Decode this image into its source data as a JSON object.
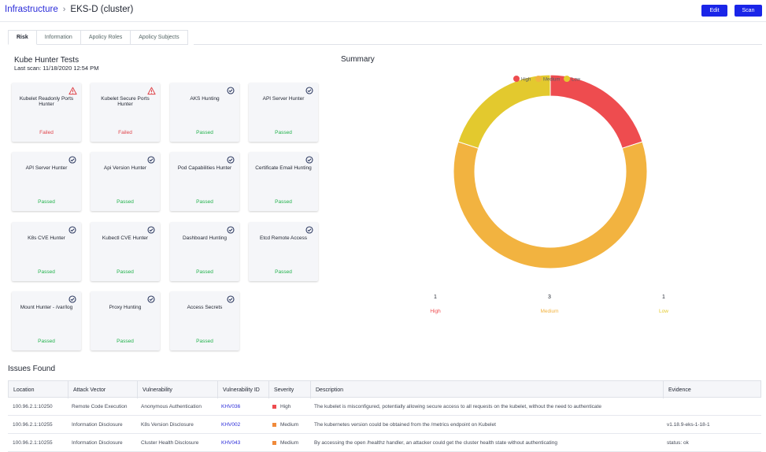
{
  "header": {
    "breadcrumb_root": "Infrastructure",
    "breadcrumb_sep": "›",
    "breadcrumb_current": "EKS-D (cluster)",
    "edit_label": "Edit",
    "scan_label": "Scan"
  },
  "tabs": [
    "Risk",
    "Information",
    "Apolicy Roles",
    "Apolicy Subjects"
  ],
  "kube": {
    "title": "Kube Hunter Tests",
    "last_scan": "Last scan: 11/18/2020 12:54 PM"
  },
  "cards": [
    {
      "name": "Kubelet Readonly Ports Hunter",
      "status": "Failed",
      "icon": "warning-icon"
    },
    {
      "name": "Kubelet Secure Ports Hunter",
      "status": "Failed",
      "icon": "warning-icon"
    },
    {
      "name": "AKS Hunting",
      "status": "Passed",
      "icon": "check-circle-icon"
    },
    {
      "name": "API Server Hunter",
      "status": "Passed",
      "icon": "check-circle-icon"
    },
    {
      "name": "API Server Hunter",
      "status": "Passed",
      "icon": "check-circle-icon"
    },
    {
      "name": "Api Version Hunter",
      "status": "Passed",
      "icon": "check-circle-icon"
    },
    {
      "name": "Pod Capabilities Hunter",
      "status": "Passed",
      "icon": "check-circle-icon"
    },
    {
      "name": "Certificate Email Hunting",
      "status": "Passed",
      "icon": "check-circle-icon"
    },
    {
      "name": "K8s CVE Hunter",
      "status": "Passed",
      "icon": "check-circle-icon"
    },
    {
      "name": "Kubectl CVE Hunter",
      "status": "Passed",
      "icon": "check-circle-icon"
    },
    {
      "name": "Dashboard Hunting",
      "status": "Passed",
      "icon": "check-circle-icon"
    },
    {
      "name": "Etcd Remote Access",
      "status": "Passed",
      "icon": "check-circle-icon"
    },
    {
      "name": "Mount Hunter - /var/log",
      "status": "Passed",
      "icon": "check-circle-icon"
    },
    {
      "name": "Proxy Hunting",
      "status": "Passed",
      "icon": "check-circle-icon"
    },
    {
      "name": "Access Secrets",
      "status": "Passed",
      "icon": "check-circle-icon"
    }
  ],
  "summary": {
    "title": "Summary"
  },
  "chart_data": {
    "type": "pie",
    "categories": [
      "High",
      "Medium",
      "Low"
    ],
    "values": [
      1,
      3,
      1
    ],
    "colors": [
      "#ee4c4f",
      "#f2b340",
      "#e3c92e"
    ],
    "legend": "top",
    "title": ""
  },
  "issues": {
    "title": "Issues Found",
    "columns": [
      "Location",
      "Attack Vector",
      "Vulnerability",
      "Vulnerability ID",
      "Severity",
      "Description",
      "Evidence"
    ],
    "rows": [
      [
        "100.96.2.1:10250",
        "Remote Code Execution",
        "Anonymous Authentication",
        "KHV036",
        "High",
        "The kubelet is misconfigured, potentially allowing secure access to all requests on the kubelet, without the need to authenticate",
        ""
      ],
      [
        "100.96.2.1:10255",
        "Information Disclosure",
        "K8s Version Disclosure",
        "KHV002",
        "Medium",
        "The kubernetes version could be obtained from the /metrics endpoint on Kubelet",
        "v1.18.9-eks-1-18-1"
      ],
      [
        "100.96.2.1:10255",
        "Information Disclosure",
        "Cluster Health Disclosure",
        "KHV043",
        "Medium",
        "By accessing the open /healthz handler, an attacker could get the cluster health state without authenticating",
        "status: ok"
      ]
    ],
    "severity_colors": {
      "High": "#ee4c4f",
      "Medium": "#f08a3a"
    }
  },
  "colors": {
    "accent": "#1a25e8",
    "passed": "#22b24c",
    "failed": "#e0454b"
  }
}
